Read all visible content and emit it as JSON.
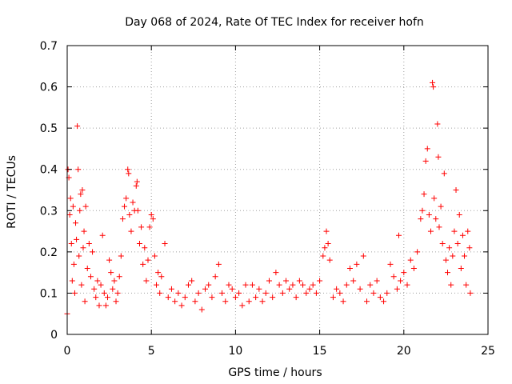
{
  "chart_data": {
    "type": "scatter",
    "title": "Day 068 of 2024, Rate Of TEC Index for receiver hofn",
    "xlabel": "GPS time / hours",
    "ylabel": "ROTI / TECUs",
    "xlim": [
      0,
      25
    ],
    "ylim": [
      0,
      0.7
    ],
    "xticks": [
      0,
      5,
      10,
      15,
      20,
      25
    ],
    "xtick_labels": [
      "0",
      "5",
      "10",
      "15",
      "20",
      "25"
    ],
    "yticks": [
      0,
      0.1,
      0.2,
      0.3,
      0.4,
      0.5,
      0.6,
      0.7
    ],
    "ytick_labels": [
      "0",
      "0.1",
      "0.2",
      "0.3",
      "0.4",
      "0.5",
      "0.6",
      "0.7"
    ],
    "grid": true,
    "marker": "+",
    "color": "#ff0000",
    "series": [
      {
        "name": "ROTI",
        "points": [
          [
            0.0,
            0.05
          ],
          [
            0.05,
            0.4
          ],
          [
            0.1,
            0.38
          ],
          [
            0.15,
            0.29
          ],
          [
            0.2,
            0.33
          ],
          [
            0.25,
            0.22
          ],
          [
            0.3,
            0.13
          ],
          [
            0.35,
            0.31
          ],
          [
            0.4,
            0.17
          ],
          [
            0.45,
            0.1
          ],
          [
            0.5,
            0.27
          ],
          [
            0.55,
            0.23
          ],
          [
            0.6,
            0.505
          ],
          [
            0.65,
            0.4
          ],
          [
            0.7,
            0.19
          ],
          [
            0.75,
            0.3
          ],
          [
            0.8,
            0.34
          ],
          [
            0.85,
            0.12
          ],
          [
            0.9,
            0.35
          ],
          [
            0.95,
            0.21
          ],
          [
            1.0,
            0.25
          ],
          [
            1.05,
            0.08
          ],
          [
            1.1,
            0.31
          ],
          [
            1.2,
            0.16
          ],
          [
            1.3,
            0.22
          ],
          [
            1.4,
            0.14
          ],
          [
            1.5,
            0.2
          ],
          [
            1.6,
            0.11
          ],
          [
            1.7,
            0.09
          ],
          [
            1.8,
            0.13
          ],
          [
            1.9,
            0.07
          ],
          [
            2.0,
            0.12
          ],
          [
            2.1,
            0.24
          ],
          [
            2.2,
            0.1
          ],
          [
            2.3,
            0.07
          ],
          [
            2.4,
            0.09
          ],
          [
            2.5,
            0.18
          ],
          [
            2.6,
            0.15
          ],
          [
            2.7,
            0.11
          ],
          [
            2.8,
            0.13
          ],
          [
            2.9,
            0.08
          ],
          [
            3.0,
            0.1
          ],
          [
            3.1,
            0.14
          ],
          [
            3.2,
            0.19
          ],
          [
            3.3,
            0.28
          ],
          [
            3.4,
            0.31
          ],
          [
            3.5,
            0.33
          ],
          [
            3.6,
            0.4
          ],
          [
            3.65,
            0.39
          ],
          [
            3.7,
            0.29
          ],
          [
            3.8,
            0.25
          ],
          [
            3.9,
            0.32
          ],
          [
            4.0,
            0.3
          ],
          [
            4.1,
            0.36
          ],
          [
            4.15,
            0.37
          ],
          [
            4.2,
            0.3
          ],
          [
            4.3,
            0.22
          ],
          [
            4.4,
            0.26
          ],
          [
            4.5,
            0.17
          ],
          [
            4.6,
            0.21
          ],
          [
            4.7,
            0.13
          ],
          [
            4.8,
            0.18
          ],
          [
            4.9,
            0.26
          ],
          [
            5.0,
            0.29
          ],
          [
            5.1,
            0.28
          ],
          [
            5.2,
            0.19
          ],
          [
            5.3,
            0.12
          ],
          [
            5.4,
            0.15
          ],
          [
            5.5,
            0.1
          ],
          [
            5.6,
            0.14
          ],
          [
            5.8,
            0.22
          ],
          [
            6.0,
            0.09
          ],
          [
            6.2,
            0.11
          ],
          [
            6.4,
            0.08
          ],
          [
            6.6,
            0.1
          ],
          [
            6.8,
            0.07
          ],
          [
            7.0,
            0.09
          ],
          [
            7.2,
            0.12
          ],
          [
            7.4,
            0.13
          ],
          [
            7.6,
            0.08
          ],
          [
            7.8,
            0.1
          ],
          [
            8.0,
            0.06
          ],
          [
            8.2,
            0.11
          ],
          [
            8.4,
            0.12
          ],
          [
            8.6,
            0.09
          ],
          [
            8.8,
            0.14
          ],
          [
            9.0,
            0.17
          ],
          [
            9.2,
            0.1
          ],
          [
            9.4,
            0.08
          ],
          [
            9.6,
            0.12
          ],
          [
            9.8,
            0.11
          ],
          [
            10.0,
            0.09
          ],
          [
            10.2,
            0.1
          ],
          [
            10.4,
            0.07
          ],
          [
            10.6,
            0.12
          ],
          [
            10.8,
            0.08
          ],
          [
            11.0,
            0.12
          ],
          [
            11.2,
            0.09
          ],
          [
            11.4,
            0.11
          ],
          [
            11.6,
            0.08
          ],
          [
            11.8,
            0.1
          ],
          [
            12.0,
            0.13
          ],
          [
            12.2,
            0.09
          ],
          [
            12.4,
            0.15
          ],
          [
            12.6,
            0.12
          ],
          [
            12.8,
            0.1
          ],
          [
            13.0,
            0.13
          ],
          [
            13.2,
            0.11
          ],
          [
            13.4,
            0.12
          ],
          [
            13.6,
            0.09
          ],
          [
            13.8,
            0.13
          ],
          [
            14.0,
            0.12
          ],
          [
            14.2,
            0.1
          ],
          [
            14.4,
            0.11
          ],
          [
            14.6,
            0.12
          ],
          [
            14.8,
            0.1
          ],
          [
            15.0,
            0.13
          ],
          [
            15.2,
            0.19
          ],
          [
            15.3,
            0.21
          ],
          [
            15.4,
            0.25
          ],
          [
            15.5,
            0.22
          ],
          [
            15.6,
            0.18
          ],
          [
            15.8,
            0.09
          ],
          [
            16.0,
            0.11
          ],
          [
            16.2,
            0.1
          ],
          [
            16.4,
            0.08
          ],
          [
            16.6,
            0.12
          ],
          [
            16.8,
            0.16
          ],
          [
            17.0,
            0.13
          ],
          [
            17.2,
            0.17
          ],
          [
            17.4,
            0.11
          ],
          [
            17.6,
            0.19
          ],
          [
            17.8,
            0.08
          ],
          [
            18.0,
            0.12
          ],
          [
            18.2,
            0.1
          ],
          [
            18.4,
            0.13
          ],
          [
            18.6,
            0.09
          ],
          [
            18.8,
            0.08
          ],
          [
            19.0,
            0.1
          ],
          [
            19.2,
            0.17
          ],
          [
            19.4,
            0.14
          ],
          [
            19.6,
            0.11
          ],
          [
            19.7,
            0.24
          ],
          [
            19.8,
            0.13
          ],
          [
            20.0,
            0.15
          ],
          [
            20.2,
            0.12
          ],
          [
            20.4,
            0.18
          ],
          [
            20.6,
            0.16
          ],
          [
            20.8,
            0.2
          ],
          [
            21.0,
            0.28
          ],
          [
            21.1,
            0.3
          ],
          [
            21.2,
            0.34
          ],
          [
            21.3,
            0.42
          ],
          [
            21.4,
            0.45
          ],
          [
            21.5,
            0.29
          ],
          [
            21.6,
            0.25
          ],
          [
            21.7,
            0.61
          ],
          [
            21.75,
            0.6
          ],
          [
            21.8,
            0.33
          ],
          [
            21.9,
            0.28
          ],
          [
            22.0,
            0.51
          ],
          [
            22.05,
            0.43
          ],
          [
            22.1,
            0.26
          ],
          [
            22.2,
            0.31
          ],
          [
            22.3,
            0.22
          ],
          [
            22.4,
            0.39
          ],
          [
            22.5,
            0.18
          ],
          [
            22.6,
            0.15
          ],
          [
            22.7,
            0.21
          ],
          [
            22.8,
            0.12
          ],
          [
            22.9,
            0.19
          ],
          [
            23.0,
            0.25
          ],
          [
            23.1,
            0.35
          ],
          [
            23.2,
            0.22
          ],
          [
            23.3,
            0.29
          ],
          [
            23.4,
            0.16
          ],
          [
            23.5,
            0.24
          ],
          [
            23.6,
            0.19
          ],
          [
            23.7,
            0.12
          ],
          [
            23.8,
            0.25
          ],
          [
            23.9,
            0.21
          ],
          [
            23.95,
            0.1
          ]
        ]
      }
    ]
  }
}
